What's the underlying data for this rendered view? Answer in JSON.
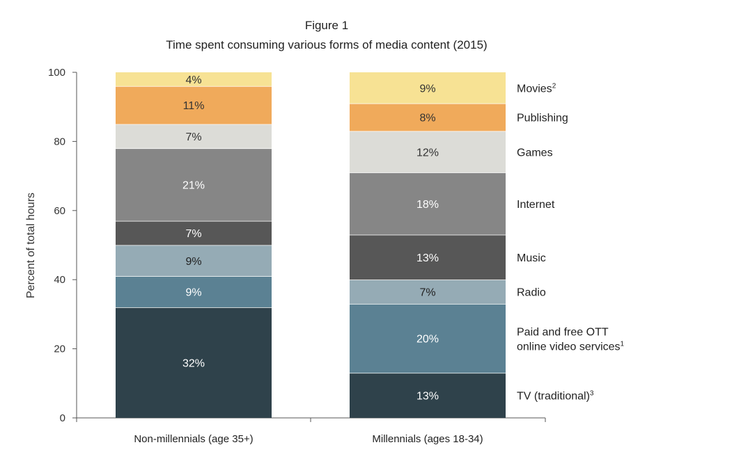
{
  "chart_data": {
    "type": "bar",
    "stacked": true,
    "title": "Figure 1",
    "subtitle": "Time spent consuming various forms of media content (2015)",
    "xlabel": "",
    "ylabel": "Percent of total hours",
    "ylim": [
      0,
      100
    ],
    "yticks": [
      "0",
      "20",
      "40",
      "60",
      "80",
      "100"
    ],
    "categories": [
      "Non-millennials (age 35+)",
      "Millennials (ages 18-34)"
    ],
    "series": [
      {
        "name": "TV (traditional)",
        "sup": "3",
        "color": "#2f424b",
        "text_color": "#ffffff",
        "values": [
          32,
          13
        ],
        "labels": [
          "32%",
          "13%"
        ]
      },
      {
        "name": "Paid and free OTT",
        "name_line2": "online video services",
        "sup": "1",
        "color": "#5b8193",
        "text_color": "#ffffff",
        "values": [
          9,
          20
        ],
        "labels": [
          "9%",
          "20%"
        ]
      },
      {
        "name": "Radio",
        "sup": "",
        "color": "#95abb5",
        "text_color": "#222222",
        "values": [
          9,
          7
        ],
        "labels": [
          "9%",
          "7%"
        ]
      },
      {
        "name": "Music",
        "sup": "",
        "color": "#575757",
        "text_color": "#ffffff",
        "values": [
          7,
          13
        ],
        "labels": [
          "7%",
          "13%"
        ]
      },
      {
        "name": "Internet",
        "sup": "",
        "color": "#868686",
        "text_color": "#ffffff",
        "values": [
          21,
          18
        ],
        "labels": [
          "21%",
          "18%"
        ]
      },
      {
        "name": "Games",
        "sup": "",
        "color": "#dcdcd7",
        "text_color": "#333333",
        "values": [
          7,
          12
        ],
        "labels": [
          "7%",
          "12%"
        ]
      },
      {
        "name": "Publishing",
        "sup": "",
        "color": "#f0aa5b",
        "text_color": "#333333",
        "values": [
          11,
          8
        ],
        "labels": [
          "11%",
          "8%"
        ]
      },
      {
        "name": "Movies",
        "sup": "2",
        "color": "#f7e294",
        "text_color": "#333333",
        "values": [
          4,
          9
        ],
        "labels": [
          "4%",
          "9%"
        ]
      }
    ]
  }
}
